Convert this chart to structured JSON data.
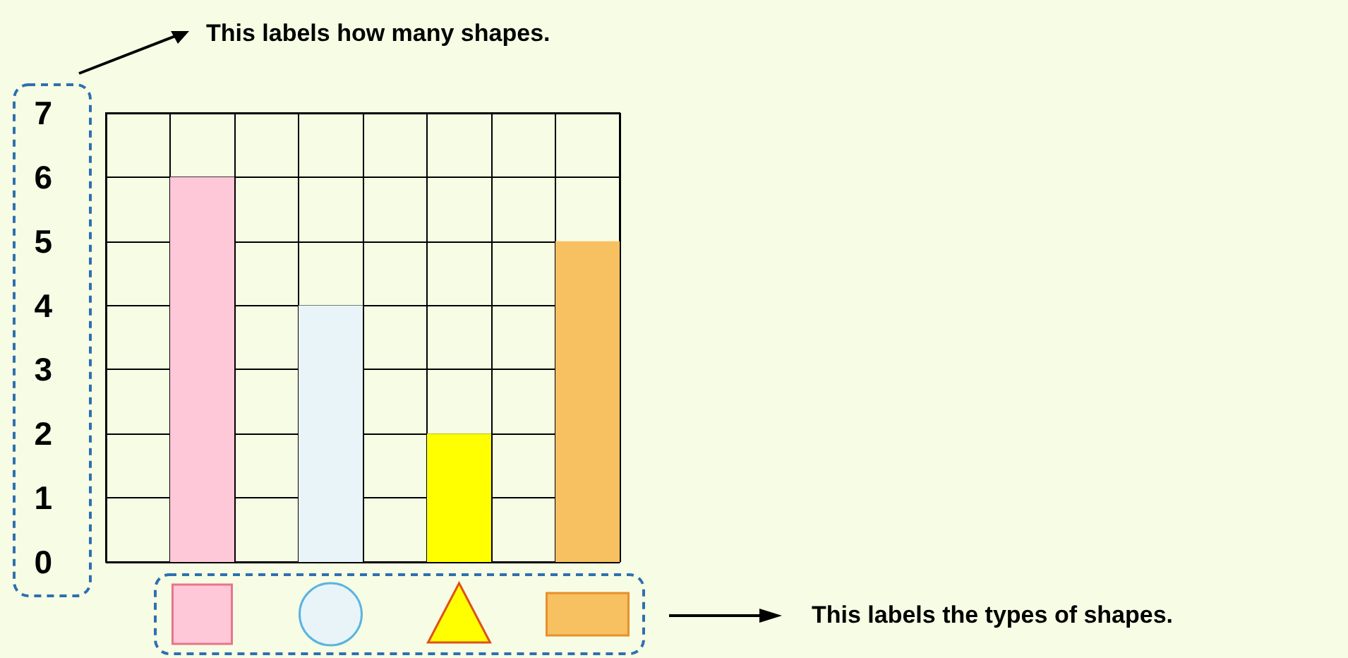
{
  "chart_data": {
    "type": "bar",
    "categories": [
      null,
      null,
      null,
      null,
      null,
      null,
      null,
      null
    ],
    "values": [
      null,
      6,
      null,
      4,
      null,
      2,
      null,
      5
    ],
    "colors": [
      null,
      "#ffc8d8",
      null,
      "#e8f4f8",
      null,
      "#ffff00",
      null,
      "#f7c060"
    ],
    "ylim": [
      0,
      7
    ],
    "yticks": [
      0,
      1,
      2,
      3,
      4,
      5,
      6,
      7
    ],
    "grid": true,
    "annotations": [
      "This labels how many shapes.",
      "This labels the types of shapes."
    ]
  }
}
